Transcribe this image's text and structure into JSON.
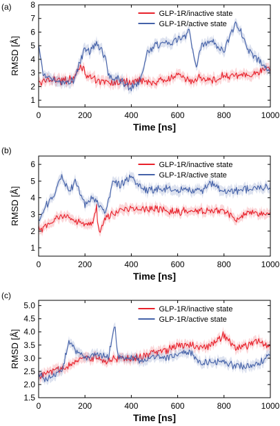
{
  "chart_data": [
    {
      "panel_label": "(a)",
      "type": "line",
      "xlabel": "Time [ns]",
      "ylabel": "RMSD [Å]",
      "xlim": [
        0,
        1000
      ],
      "ylim": [
        0.5,
        8
      ],
      "xticks": [
        0,
        200,
        400,
        600,
        800,
        1000
      ],
      "yticks": [
        1,
        2,
        3,
        4,
        5,
        6,
        7,
        8
      ],
      "legend_position": "top-right",
      "series": [
        {
          "name": "GLP-1R/inactive state",
          "color": "#e8202a",
          "x": [
            0,
            50,
            100,
            150,
            180,
            200,
            250,
            300,
            350,
            400,
            450,
            500,
            550,
            600,
            650,
            700,
            750,
            800,
            850,
            900,
            950,
            1000
          ],
          "y": [
            2.2,
            2.6,
            2.4,
            2.6,
            3.6,
            3.0,
            2.4,
            2.3,
            2.3,
            2.3,
            2.5,
            2.3,
            2.5,
            2.8,
            2.4,
            2.7,
            2.4,
            2.8,
            2.9,
            2.7,
            3.0,
            3.4
          ]
        },
        {
          "name": "GLP-1R/active state",
          "color": "#4461a8",
          "x": [
            0,
            20,
            50,
            100,
            150,
            200,
            220,
            250,
            290,
            300,
            350,
            400,
            440,
            470,
            500,
            550,
            600,
            650,
            680,
            700,
            750,
            800,
            850,
            880,
            900,
            950,
            1000
          ],
          "y": [
            4.9,
            2.9,
            2.6,
            2.3,
            2.4,
            4.8,
            4.6,
            5.2,
            4.2,
            2.8,
            2.5,
            1.9,
            2.4,
            4.5,
            5.0,
            5.2,
            5.4,
            6.0,
            3.5,
            4.9,
            5.3,
            4.6,
            6.7,
            5.8,
            4.8,
            3.9,
            3.2
          ]
        }
      ]
    },
    {
      "panel_label": "(b)",
      "type": "line",
      "xlabel": "Time [ns]",
      "ylabel": "RMSD [Å]",
      "xlim": [
        0,
        1000
      ],
      "ylim": [
        0.5,
        6.5
      ],
      "xticks": [
        0,
        200,
        400,
        600,
        800,
        1000
      ],
      "yticks": [
        1,
        2,
        3,
        4,
        5,
        6
      ],
      "legend_position": "top-right",
      "series": [
        {
          "name": "GLP-1R/inactive state",
          "color": "#e8202a",
          "x": [
            0,
            20,
            60,
            100,
            150,
            200,
            230,
            250,
            260,
            280,
            300,
            350,
            400,
            500,
            600,
            700,
            800,
            860,
            900,
            1000
          ],
          "y": [
            2.2,
            2.1,
            2.6,
            2.9,
            2.8,
            2.3,
            2.4,
            3.4,
            1.8,
            2.7,
            2.9,
            3.2,
            3.4,
            3.3,
            3.2,
            3.2,
            3.2,
            2.6,
            3.2,
            3.0
          ]
        },
        {
          "name": "GLP-1R/active state",
          "color": "#4461a8",
          "x": [
            0,
            30,
            60,
            100,
            130,
            160,
            200,
            230,
            260,
            290,
            320,
            350,
            400,
            450,
            500,
            600,
            700,
            750,
            800,
            900,
            1000
          ],
          "y": [
            2.6,
            3.5,
            4.0,
            5.2,
            4.3,
            5.0,
            3.5,
            4.0,
            3.6,
            3.2,
            5.0,
            4.8,
            5.2,
            4.5,
            4.5,
            4.5,
            4.4,
            4.9,
            4.4,
            4.5,
            4.6
          ]
        }
      ]
    },
    {
      "panel_label": "(c)",
      "type": "line",
      "xlabel": "Time [ns]",
      "ylabel": "RMSD [Å]",
      "xlim": [
        0,
        1000
      ],
      "ylim": [
        1.5,
        5.2
      ],
      "xticks": [
        0,
        200,
        400,
        600,
        800,
        1000
      ],
      "yticks": [
        1.5,
        2.0,
        2.5,
        3.0,
        3.5,
        4.0,
        4.5,
        5.0
      ],
      "ytick_labels": [
        "1.5",
        "2.0",
        "2.5",
        "3.0",
        "3.5",
        "4.0",
        "4.5",
        "5.0"
      ],
      "legend_position": "top-right",
      "series": [
        {
          "name": "GLP-1R/inactive state",
          "color": "#e8202a",
          "x": [
            0,
            50,
            100,
            150,
            200,
            250,
            300,
            350,
            400,
            450,
            500,
            550,
            600,
            650,
            700,
            750,
            800,
            850,
            900,
            950,
            1000
          ],
          "y": [
            2.3,
            2.5,
            2.6,
            2.8,
            3.0,
            3.0,
            2.9,
            3.0,
            3.0,
            3.1,
            3.2,
            3.3,
            3.5,
            3.5,
            3.4,
            3.5,
            3.9,
            3.4,
            3.5,
            3.7,
            3.4
          ]
        },
        {
          "name": "GLP-1R/active state",
          "color": "#4461a8",
          "x": [
            0,
            30,
            60,
            100,
            130,
            150,
            200,
            250,
            300,
            330,
            340,
            360,
            400,
            450,
            500,
            550,
            600,
            650,
            700,
            750,
            800,
            850,
            900,
            950,
            1000
          ],
          "y": [
            2.4,
            2.2,
            2.4,
            2.5,
            3.6,
            3.4,
            3.0,
            3.2,
            3.0,
            4.3,
            3.2,
            3.0,
            3.0,
            2.9,
            3.1,
            3.0,
            3.2,
            3.3,
            2.8,
            2.9,
            2.8,
            2.7,
            2.7,
            2.8,
            3.2
          ]
        }
      ]
    }
  ]
}
